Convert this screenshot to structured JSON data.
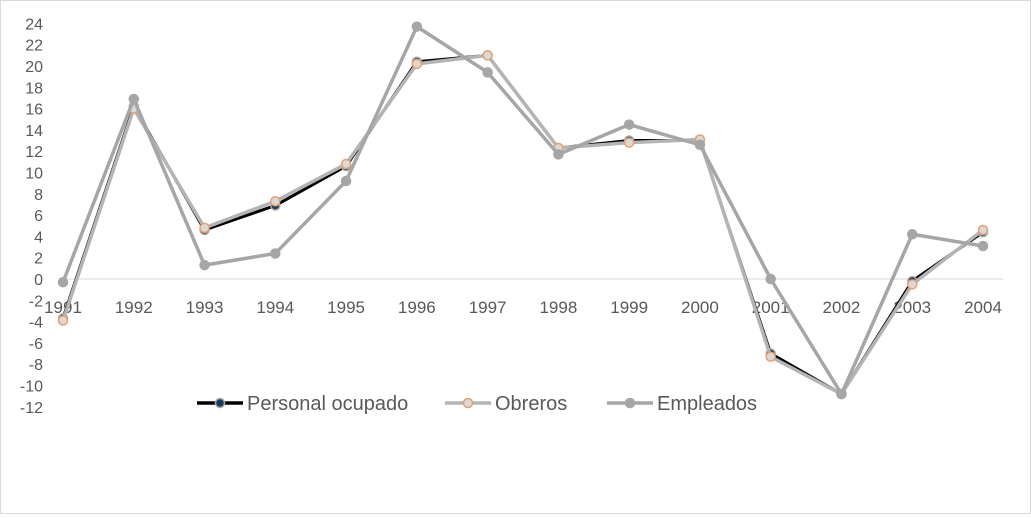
{
  "chart_data": {
    "type": "line",
    "title": "",
    "xlabel": "",
    "ylabel": "",
    "categories": [
      "1991",
      "1992",
      "1993",
      "1994",
      "1995",
      "1996",
      "1997",
      "1998",
      "1999",
      "2000",
      "2001",
      "2002",
      "2003",
      "2004"
    ],
    "ylim": [
      -12,
      24
    ],
    "yticks": [
      -12,
      -10,
      -8,
      -6,
      -4,
      -2,
      0,
      2,
      4,
      6,
      8,
      10,
      12,
      14,
      16,
      18,
      20,
      22,
      24
    ],
    "grid": false,
    "legend_position": "bottom",
    "series": [
      {
        "name": "Personal ocupado",
        "color": "#000000",
        "marker_fill": "#1f3b5a",
        "marker_stroke": "#a9a9a9",
        "values": [
          -3.7,
          16.2,
          4.6,
          6.9,
          10.6,
          20.4,
          21.0,
          12.3,
          13.0,
          13.0,
          -7.0,
          -10.8,
          -0.2,
          4.4
        ]
      },
      {
        "name": "Obreros",
        "color": "#b4b4b4",
        "marker_fill": "#d9d9d9",
        "marker_stroke": "#e8a070",
        "values": [
          -3.9,
          16.0,
          4.8,
          7.3,
          10.8,
          20.2,
          21.0,
          12.3,
          12.8,
          13.1,
          -7.3,
          -10.8,
          -0.5,
          4.6
        ]
      },
      {
        "name": "Empleados",
        "color": "#a6a6a6",
        "marker_fill": "#a6a6a6",
        "marker_stroke": "#a6a6a6",
        "values": [
          -0.3,
          16.9,
          1.3,
          2.4,
          9.2,
          23.7,
          19.4,
          11.7,
          14.5,
          12.6,
          0.0,
          -10.8,
          4.2,
          3.1
        ]
      }
    ]
  }
}
